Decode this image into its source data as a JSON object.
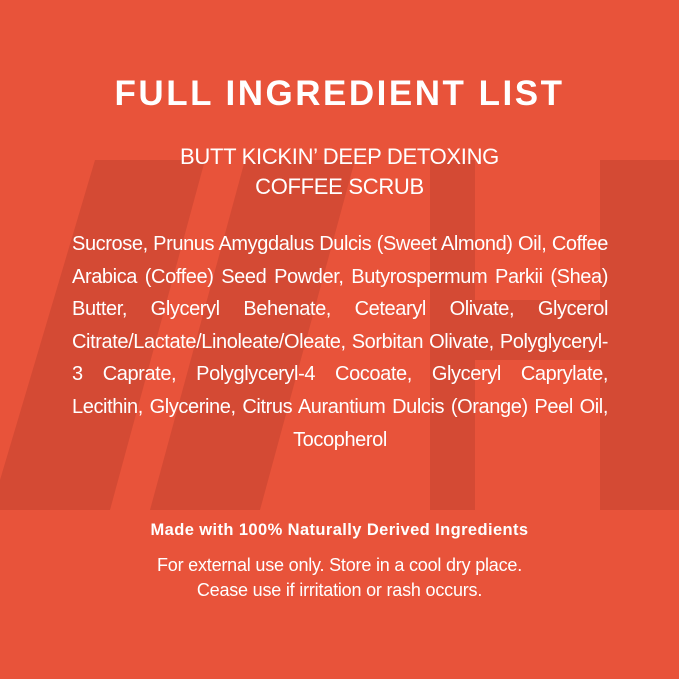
{
  "colors": {
    "background": "#E8533A",
    "watermark": "#D44A34",
    "text": "#FFFFFF"
  },
  "title": "FULL INGREDIENT LIST",
  "product_name": {
    "line1": "BUTT KICKIN’ DEEP DETOXING",
    "line2": "COFFEE SCRUB"
  },
  "ingredients": "Sucrose, Prunus Amygdalus Dulcis (Sweet Almond) Oil, Coffee Arabica (Coffee) Seed Powder, Butyrospermum Parkii (Shea) Butter, Glyceryl Behenate, Cetearyl Olivate, Glycerol Citrate/Lactate/Linoleate/Oleate, Sorbitan Olivate, Polyglyceryl-3 Caprate, Polyglyceryl-4 Cocoate, Glyceryl Caprylate, Lecithin, Glycerine, Citrus Aurantium Dulcis (Orange) Peel Oil, Tocopherol",
  "claim": "Made with 100% Naturally Derived Ingredients",
  "notes": {
    "line1": "For external use only. Store in a cool dry place.",
    "line2": "Cease use if irritation or rash occurs."
  }
}
